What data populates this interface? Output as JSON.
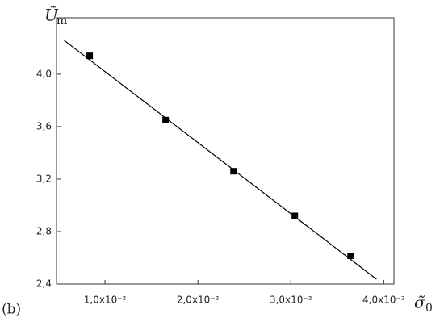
{
  "chart_data": {
    "type": "scatter",
    "ylabel": {
      "symbol": "Ũ",
      "subscript": "m"
    },
    "xlabel": {
      "symbol": "σ̃",
      "subscript": "0"
    },
    "annotation": "(b)",
    "x": [
      0.00835,
      0.01652,
      0.02383,
      0.03043,
      0.03643
    ],
    "values": [
      4.14,
      3.65,
      3.26,
      2.92,
      2.615
    ],
    "color": "#000000",
    "fit": {
      "x": [
        0.0056,
        0.03922
      ],
      "y": [
        4.258,
        2.437
      ],
      "color": "#000000"
    },
    "xlim": [
      0.00478,
      0.0411
    ],
    "ylim": [
      2.4,
      4.43
    ],
    "xticks": [
      {
        "value": 0.01,
        "label": "1,0x10⁻²"
      },
      {
        "value": 0.02,
        "label": "2,0x10⁻²"
      },
      {
        "value": 0.03,
        "label": "3,0x10⁻²"
      },
      {
        "value": 0.04,
        "label": "4,0x10⁻²"
      }
    ],
    "yticks": [
      {
        "value": 2.4,
        "label": "2,4"
      },
      {
        "value": 2.8,
        "label": "2,8"
      },
      {
        "value": 3.2,
        "label": "3,2"
      },
      {
        "value": 3.6,
        "label": "3,6"
      },
      {
        "value": 4.0,
        "label": "4,0"
      }
    ]
  }
}
